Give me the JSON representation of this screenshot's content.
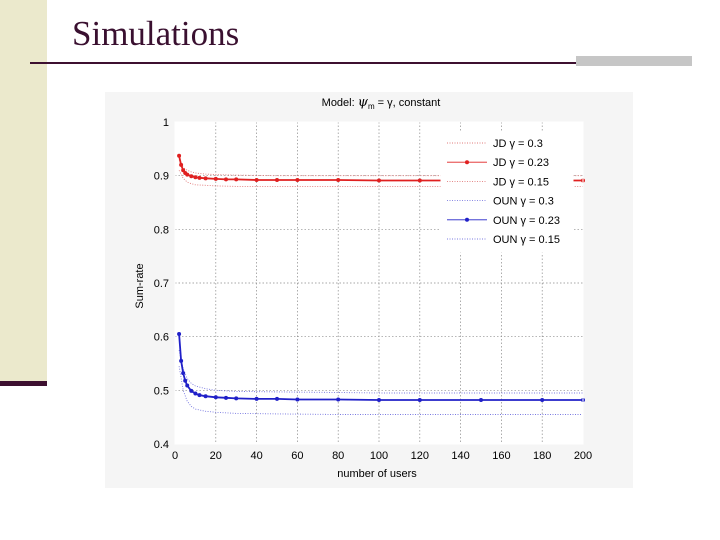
{
  "slide": {
    "title": "Simulations"
  },
  "chart_data": {
    "type": "line",
    "title_prefix": "Model: ",
    "title_psi": "ψ",
    "title_sub": "m",
    "title_suffix": " = γ, constant",
    "xlabel": "number of users",
    "ylabel": "Sum-rate",
    "xlim": [
      0,
      200
    ],
    "ylim": [
      0.4,
      1.0
    ],
    "xticks": [
      0,
      20,
      40,
      60,
      80,
      100,
      120,
      140,
      160,
      180,
      200
    ],
    "yticks": [
      0.4,
      0.5,
      0.6,
      0.7,
      0.8,
      0.9,
      1
    ],
    "grid": true,
    "legend_position": "top-right",
    "legend": [
      "JD γ = 0.3",
      "JD γ = 0.23",
      "JD γ = 0.15",
      "OUN γ = 0.3",
      "OUN γ = 0.23",
      "OUN γ = 0.15"
    ],
    "series": [
      {
        "name": "JD γ = 0.3",
        "color": "#e07a7a",
        "style": "dotted",
        "x": [
          2,
          4,
          6,
          8,
          10,
          15,
          20,
          30,
          50,
          80,
          100,
          150,
          200
        ],
        "y": [
          0.93,
          0.915,
          0.91,
          0.907,
          0.905,
          0.903,
          0.902,
          0.901,
          0.9,
          0.9,
          0.9,
          0.9,
          0.9
        ]
      },
      {
        "name": "JD γ = 0.23",
        "color": "#e02020",
        "style": "markers",
        "x": [
          2,
          3,
          4,
          5,
          6,
          8,
          10,
          12,
          15,
          20,
          25,
          30,
          40,
          50,
          60,
          80,
          100,
          120,
          150,
          180,
          200
        ],
        "y": [
          0.937,
          0.92,
          0.91,
          0.905,
          0.902,
          0.899,
          0.897,
          0.896,
          0.895,
          0.894,
          0.893,
          0.893,
          0.892,
          0.892,
          0.892,
          0.892,
          0.891,
          0.891,
          0.891,
          0.891,
          0.891
        ]
      },
      {
        "name": "JD γ = 0.15",
        "color": "#e07a7a",
        "style": "dotted",
        "x": [
          2,
          4,
          6,
          8,
          10,
          15,
          20,
          30,
          50,
          80,
          100,
          150,
          200
        ],
        "y": [
          0.91,
          0.895,
          0.888,
          0.885,
          0.883,
          0.882,
          0.881,
          0.88,
          0.88,
          0.88,
          0.88,
          0.88,
          0.88
        ]
      },
      {
        "name": "OUN γ = 0.3",
        "color": "#7a7ae0",
        "style": "dotted",
        "x": [
          2,
          4,
          6,
          8,
          10,
          15,
          20,
          30,
          50,
          80,
          100,
          150,
          200
        ],
        "y": [
          0.575,
          0.54,
          0.522,
          0.513,
          0.508,
          0.503,
          0.5,
          0.498,
          0.497,
          0.496,
          0.495,
          0.495,
          0.495
        ]
      },
      {
        "name": "OUN γ = 0.23",
        "color": "#2020c8",
        "style": "markers",
        "x": [
          2,
          3,
          4,
          5,
          6,
          8,
          10,
          12,
          15,
          20,
          25,
          30,
          40,
          50,
          60,
          80,
          100,
          120,
          150,
          180,
          200
        ],
        "y": [
          0.605,
          0.555,
          0.532,
          0.518,
          0.509,
          0.499,
          0.494,
          0.491,
          0.489,
          0.487,
          0.486,
          0.485,
          0.484,
          0.484,
          0.483,
          0.483,
          0.482,
          0.482,
          0.482,
          0.482,
          0.482
        ]
      },
      {
        "name": "OUN γ = 0.15",
        "color": "#7a7ae0",
        "style": "dotted",
        "x": [
          2,
          4,
          6,
          8,
          10,
          15,
          20,
          30,
          50,
          80,
          100,
          150,
          200
        ],
        "y": [
          0.545,
          0.5,
          0.48,
          0.47,
          0.465,
          0.461,
          0.459,
          0.457,
          0.456,
          0.455,
          0.455,
          0.455,
          0.455
        ]
      }
    ]
  }
}
